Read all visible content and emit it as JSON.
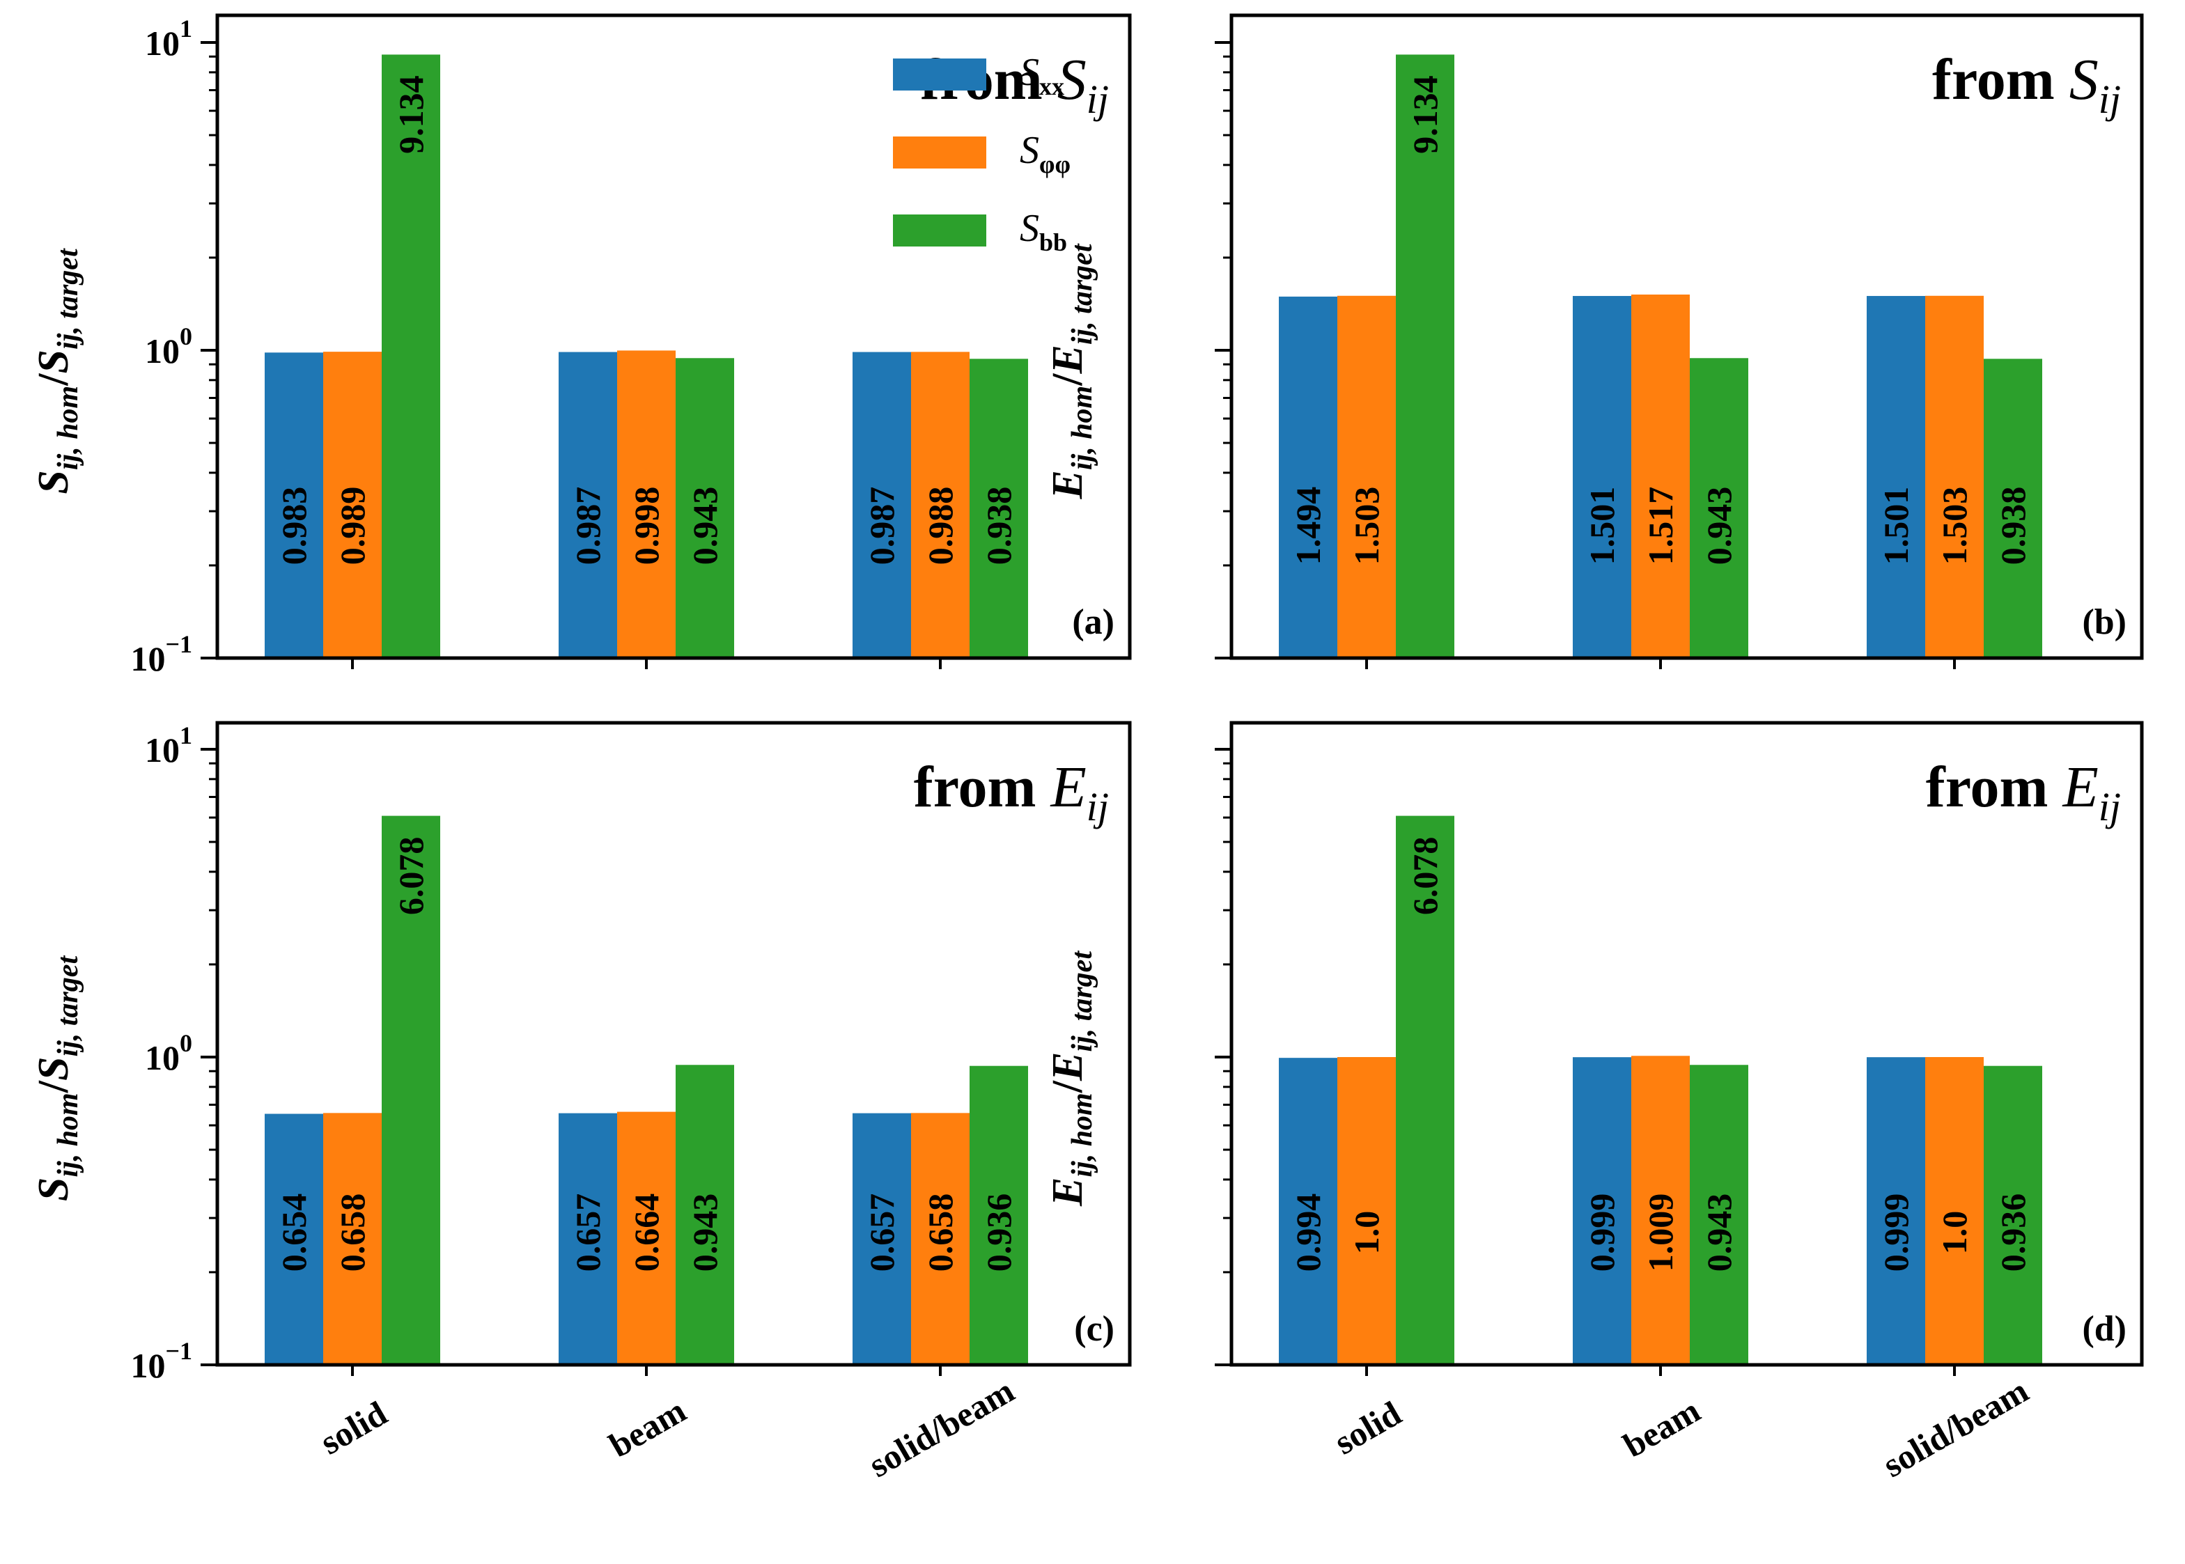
{
  "chart_data": [
    {
      "panel": "a",
      "type": "bar",
      "scale": "log",
      "tag": "(a)",
      "annotation": {
        "prefix": "from ",
        "symbol": "S",
        "sub": "ij"
      },
      "ylabel": {
        "num": "S",
        "num_sub": "ij, hom",
        "den": "S",
        "den_sub": "ij, target"
      },
      "ylim": [
        0.1,
        12
      ],
      "yticks": [
        {
          "value": 0.1,
          "label": "10",
          "exp": "−1"
        },
        {
          "value": 1,
          "label": "10",
          "exp": "0"
        },
        {
          "value": 10,
          "label": "10",
          "exp": "1"
        }
      ],
      "categories": [
        "solid",
        "beam",
        "solid/beam"
      ],
      "series": [
        {
          "name": "S_xx",
          "color": "#1f77b4",
          "values": [
            0.983,
            0.987,
            0.987
          ],
          "labels": [
            "0.983",
            "0.987",
            "0.987"
          ]
        },
        {
          "name": "S_φφ",
          "color": "#ff7f0e",
          "values": [
            0.989,
            0.998,
            0.988
          ],
          "labels": [
            "0.989",
            "0.998",
            "0.988"
          ]
        },
        {
          "name": "S_bb",
          "color": "#2ca02c",
          "values": [
            9.134,
            0.943,
            0.938
          ],
          "labels": [
            "9.134",
            "0.943",
            "0.938"
          ]
        }
      ]
    },
    {
      "panel": "b",
      "type": "bar",
      "scale": "log",
      "tag": "(b)",
      "annotation": {
        "prefix": "from ",
        "symbol": "S",
        "sub": "ij"
      },
      "ylabel": {
        "num": "E",
        "num_sub": "ij, hom",
        "den": "E",
        "den_sub": "ij, target"
      },
      "ylim": [
        0.1,
        12
      ],
      "yticks": [],
      "categories": [
        "solid",
        "beam",
        "solid/beam"
      ],
      "series": [
        {
          "name": "S_xx",
          "color": "#1f77b4",
          "values": [
            1.494,
            1.501,
            1.501
          ],
          "labels": [
            "1.494",
            "1.501",
            "1.501"
          ]
        },
        {
          "name": "S_φφ",
          "color": "#ff7f0e",
          "values": [
            1.503,
            1.517,
            1.503
          ],
          "labels": [
            "1.503",
            "1.517",
            "1.503"
          ]
        },
        {
          "name": "S_bb",
          "color": "#2ca02c",
          "values": [
            9.134,
            0.943,
            0.938
          ],
          "labels": [
            "9.134",
            "0.943",
            "0.938"
          ]
        }
      ]
    },
    {
      "panel": "c",
      "type": "bar",
      "scale": "log",
      "tag": "(c)",
      "annotation": {
        "prefix": "from ",
        "symbol": "E",
        "sub": "ij"
      },
      "ylabel": {
        "num": "S",
        "num_sub": "ij, hom",
        "den": "S",
        "den_sub": "ij, target"
      },
      "ylim": [
        0.1,
        12
      ],
      "yticks": [
        {
          "value": 0.1,
          "label": "10",
          "exp": "−1"
        },
        {
          "value": 1,
          "label": "10",
          "exp": "0"
        },
        {
          "value": 10,
          "label": "10",
          "exp": "1"
        }
      ],
      "categories": [
        "solid",
        "beam",
        "solid/beam"
      ],
      "series": [
        {
          "name": "S_xx",
          "color": "#1f77b4",
          "values": [
            0.654,
            0.657,
            0.657
          ],
          "labels": [
            "0.654",
            "0.657",
            "0.657"
          ]
        },
        {
          "name": "S_φφ",
          "color": "#ff7f0e",
          "values": [
            0.658,
            0.664,
            0.658
          ],
          "labels": [
            "0.658",
            "0.664",
            "0.658"
          ]
        },
        {
          "name": "S_bb",
          "color": "#2ca02c",
          "values": [
            6.078,
            0.943,
            0.936
          ],
          "labels": [
            "6.078",
            "0.943",
            "0.936"
          ]
        }
      ]
    },
    {
      "panel": "d",
      "type": "bar",
      "scale": "log",
      "tag": "(d)",
      "annotation": {
        "prefix": "from ",
        "symbol": "E",
        "sub": "ij"
      },
      "ylabel": {
        "num": "E",
        "num_sub": "ij, hom",
        "den": "E",
        "den_sub": "ij, target"
      },
      "ylim": [
        0.1,
        12
      ],
      "yticks": [],
      "categories": [
        "solid",
        "beam",
        "solid/beam"
      ],
      "series": [
        {
          "name": "S_xx",
          "color": "#1f77b4",
          "values": [
            0.994,
            0.999,
            0.999
          ],
          "labels": [
            "0.994",
            "0.999",
            "0.999"
          ]
        },
        {
          "name": "S_φφ",
          "color": "#ff7f0e",
          "values": [
            1.0,
            1.009,
            1.0
          ],
          "labels": [
            "1.0",
            "1.009",
            "1.0"
          ]
        },
        {
          "name": "S_bb",
          "color": "#2ca02c",
          "values": [
            6.078,
            0.943,
            0.936
          ],
          "labels": [
            "6.078",
            "0.943",
            "0.936"
          ]
        }
      ]
    }
  ],
  "legend": [
    {
      "symbol": "S",
      "sub": "xx",
      "color": "#1f77b4"
    },
    {
      "symbol": "S",
      "sub": "φφ",
      "color": "#ff7f0e"
    },
    {
      "symbol": "S",
      "sub": "bb",
      "color": "#2ca02c"
    }
  ]
}
